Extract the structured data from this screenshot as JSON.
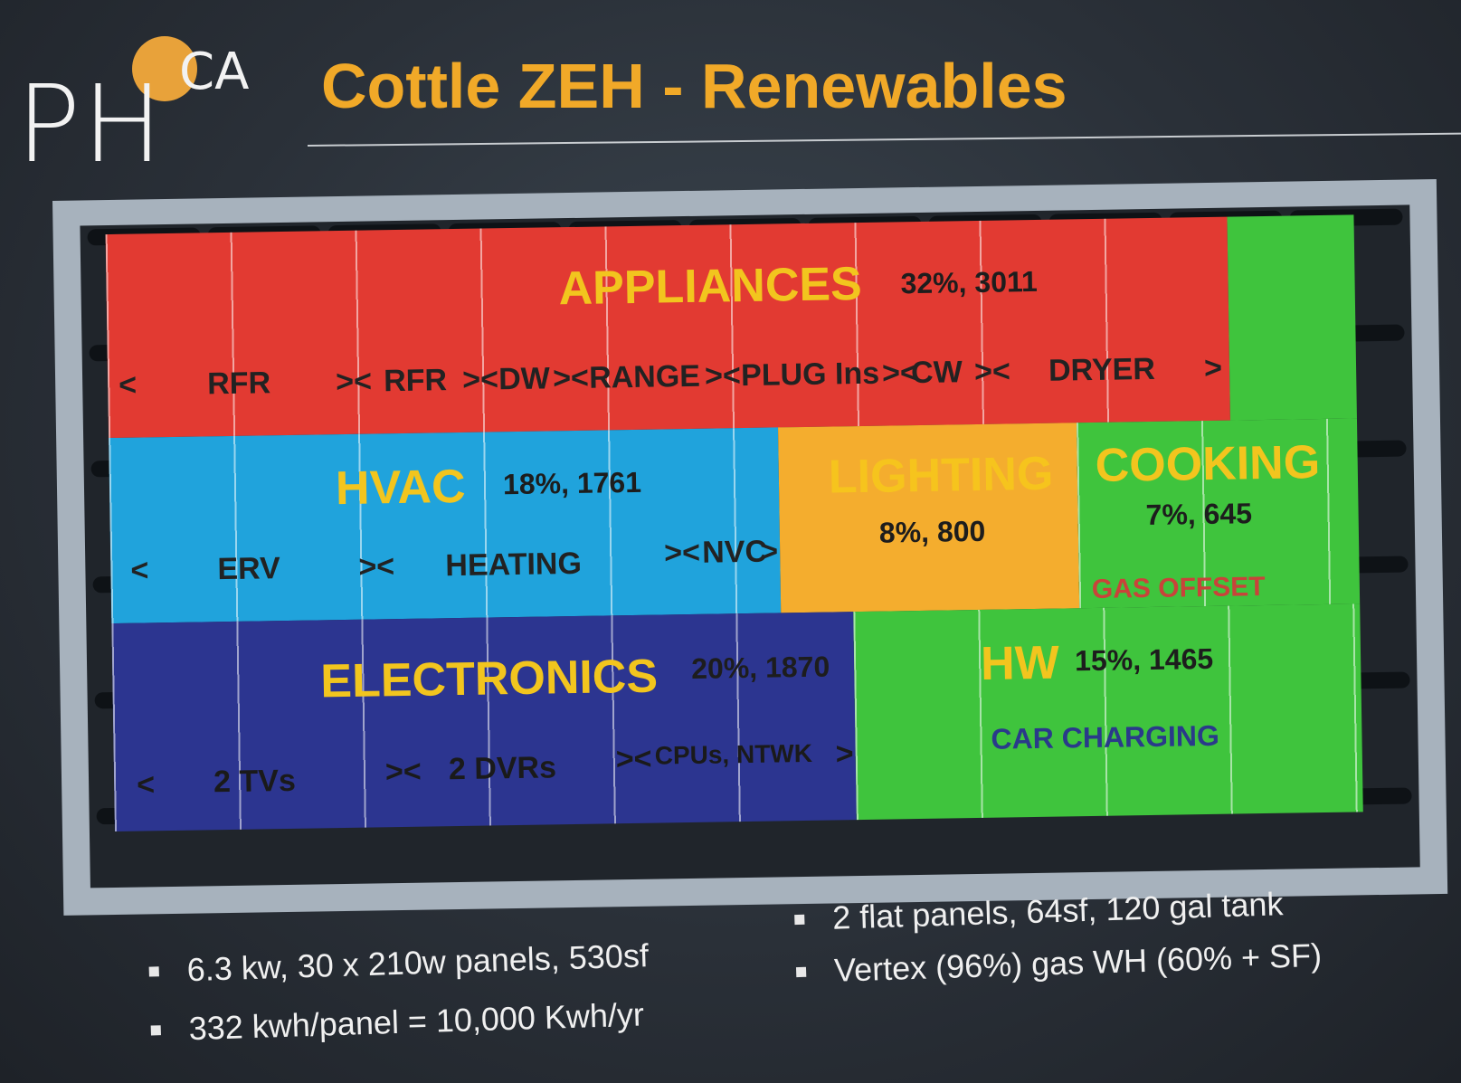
{
  "logo": {
    "text": "PH",
    "superscript": "CA"
  },
  "title": "Cottle ZEH - Renewables",
  "panel": {
    "appliances": {
      "label": "APPLIANCES",
      "stat": "32%, 3011",
      "items": [
        "<",
        "RFR",
        "><",
        "RFR",
        "><",
        "DW",
        "><",
        "RANGE",
        "><",
        "PLUG Ins",
        "><",
        "CW",
        "><",
        "DRYER",
        ">"
      ]
    },
    "hvac": {
      "label": "HVAC",
      "stat": "18%, 1761",
      "items": [
        "<",
        "ERV",
        "><",
        "HEATING",
        "><",
        "NVC",
        ">"
      ]
    },
    "lighting": {
      "label": "LIGHTING",
      "stat": "8%, 800"
    },
    "cooking": {
      "label": "COOKING",
      "stat": "7%, 645",
      "note": "GAS OFFSET"
    },
    "electronics": {
      "label": "ELECTRONICS",
      "stat": "20%, 1870",
      "items": [
        "<",
        "2 TVs",
        "><",
        "2 DVRs",
        "><",
        "CPUs, NTWK",
        ">"
      ]
    },
    "hw": {
      "label": "HW",
      "stat": "15%, 1465",
      "note": "CAR CHARGING"
    }
  },
  "colors": {
    "appliances": "#e23a32",
    "hvac": "#20a3dc",
    "lighting": "#f4ad2e",
    "green": "#3fc43d",
    "electronics": "#2c3590",
    "title": "#f1a928",
    "label": "#f2c51e"
  },
  "bullets": {
    "left": [
      "6.3 kw, 30 x 210w panels, 530sf",
      "332 kwh/panel = 10,000 Kwh/yr"
    ],
    "right": [
      "2 flat panels, 64sf, 120 gal tank",
      "Vertex (96%) gas WH  (60% + SF)"
    ]
  }
}
